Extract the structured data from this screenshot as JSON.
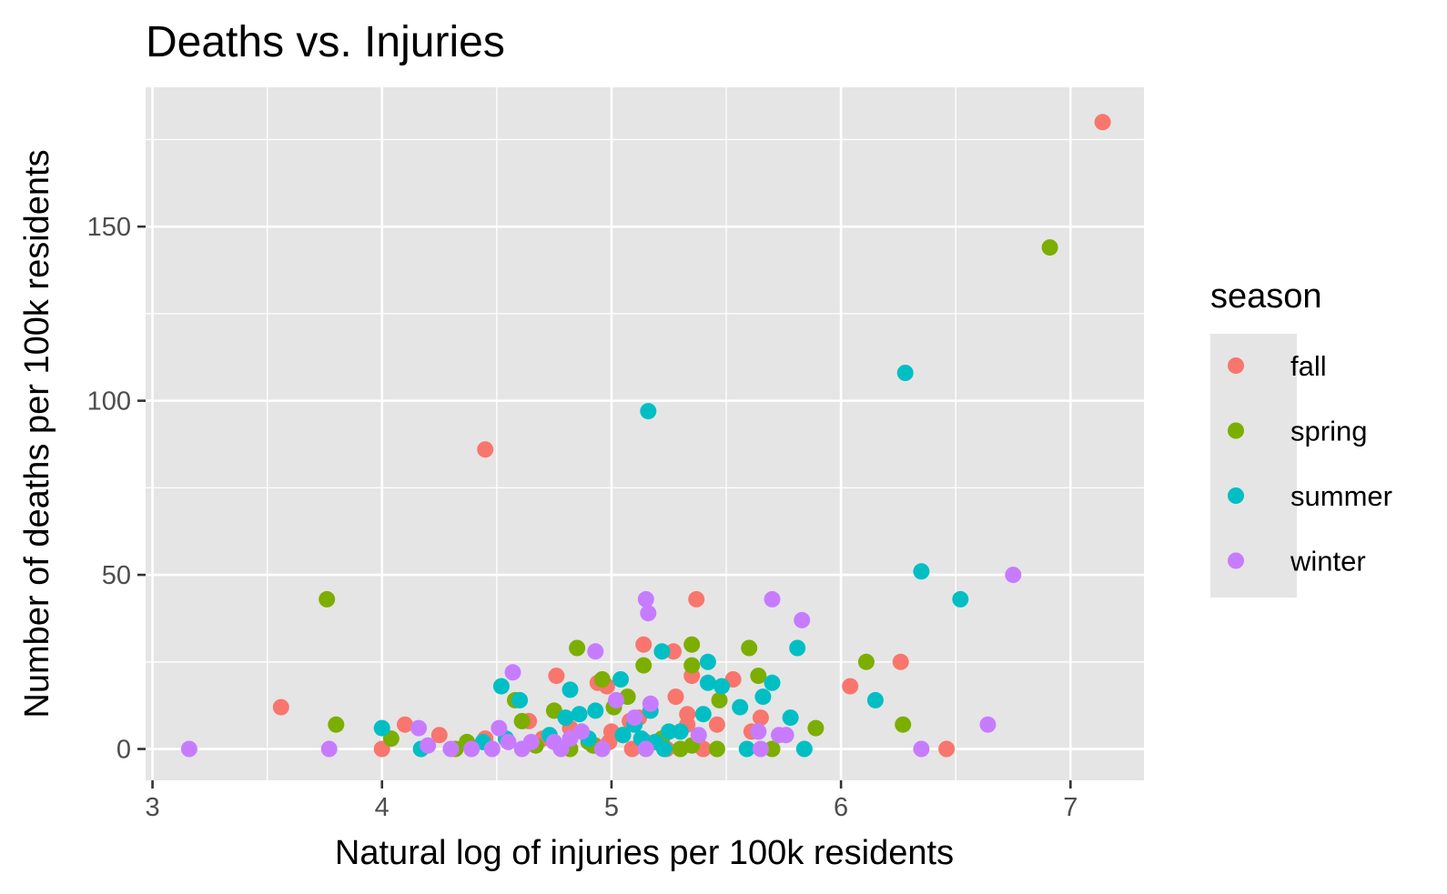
{
  "chart_data": {
    "type": "scatter",
    "title": "Deaths vs. Injuries",
    "xlabel": "Natural log of injuries per 100k residents",
    "ylabel": "Number of deaths per 100k residents",
    "xlim": [
      2.97,
      7.32
    ],
    "ylim": [
      -9,
      190
    ],
    "x_ticks": [
      3,
      4,
      5,
      6,
      7
    ],
    "y_ticks": [
      0,
      50,
      100,
      150
    ],
    "x_minor_ticks": [
      3.5,
      4.5,
      5.5,
      6.5
    ],
    "y_minor_ticks": [
      25,
      75,
      125,
      175
    ],
    "grid": true,
    "legend": {
      "title": "season",
      "position": "right"
    },
    "series": [
      {
        "name": "fall",
        "color": "#F8766D",
        "points": [
          [
            7.14,
            180
          ],
          [
            4.45,
            86
          ],
          [
            5.37,
            43
          ],
          [
            5.14,
            30
          ],
          [
            5.27,
            28
          ],
          [
            4.76,
            21
          ],
          [
            5.35,
            21
          ],
          [
            5.53,
            20
          ],
          [
            4.94,
            19
          ],
          [
            4.98,
            18
          ],
          [
            6.04,
            18
          ],
          [
            6.26,
            25
          ],
          [
            5.28,
            15
          ],
          [
            3.56,
            12
          ],
          [
            5.65,
            9
          ],
          [
            5.33,
            10
          ],
          [
            5.12,
            9
          ],
          [
            5.08,
            8
          ],
          [
            5.33,
            7
          ],
          [
            5.46,
            7
          ],
          [
            4.1,
            7
          ],
          [
            4.64,
            8
          ],
          [
            4.82,
            6
          ],
          [
            5.61,
            5
          ],
          [
            5.0,
            5
          ],
          [
            4.25,
            4
          ],
          [
            4.45,
            3
          ],
          [
            4.7,
            3
          ],
          [
            4.99,
            2
          ],
          [
            5.38,
            1
          ],
          [
            4.0,
            0
          ],
          [
            5.09,
            0
          ],
          [
            5.24,
            0
          ],
          [
            5.4,
            0
          ],
          [
            6.46,
            0
          ],
          [
            4.93,
            1
          ],
          [
            5.15,
            2
          ]
        ]
      },
      {
        "name": "spring",
        "color": "#7CAE00",
        "points": [
          [
            6.91,
            144
          ],
          [
            3.76,
            43
          ],
          [
            4.85,
            29
          ],
          [
            5.35,
            30
          ],
          [
            5.6,
            29
          ],
          [
            5.14,
            24
          ],
          [
            5.35,
            24
          ],
          [
            6.11,
            25
          ],
          [
            4.96,
            20
          ],
          [
            5.64,
            21
          ],
          [
            5.07,
            15
          ],
          [
            5.47,
            14
          ],
          [
            4.58,
            14
          ],
          [
            4.75,
            11
          ],
          [
            5.01,
            12
          ],
          [
            4.61,
            8
          ],
          [
            3.8,
            7
          ],
          [
            6.27,
            7
          ],
          [
            5.89,
            6
          ],
          [
            4.04,
            3
          ],
          [
            4.37,
            2
          ],
          [
            4.67,
            1
          ],
          [
            4.82,
            0
          ],
          [
            4.9,
            2
          ],
          [
            5.05,
            4
          ],
          [
            5.22,
            3
          ],
          [
            5.35,
            1
          ],
          [
            5.46,
            0
          ],
          [
            5.7,
            0
          ],
          [
            4.32,
            0
          ],
          [
            4.92,
            1
          ],
          [
            5.3,
            0
          ]
        ]
      },
      {
        "name": "summer",
        "color": "#00BFC4",
        "points": [
          [
            6.28,
            108
          ],
          [
            5.16,
            97
          ],
          [
            6.35,
            51
          ],
          [
            6.52,
            43
          ],
          [
            5.81,
            29
          ],
          [
            5.22,
            28
          ],
          [
            5.42,
            25
          ],
          [
            5.04,
            20
          ],
          [
            5.42,
            19
          ],
          [
            5.48,
            18
          ],
          [
            5.7,
            19
          ],
          [
            4.52,
            18
          ],
          [
            4.82,
            17
          ],
          [
            5.66,
            15
          ],
          [
            6.15,
            14
          ],
          [
            4.6,
            14
          ],
          [
            5.56,
            12
          ],
          [
            4.93,
            11
          ],
          [
            5.17,
            11
          ],
          [
            4.86,
            10
          ],
          [
            5.4,
            10
          ],
          [
            5.78,
            9
          ],
          [
            4.8,
            9
          ],
          [
            4.0,
            6
          ],
          [
            5.1,
            7
          ],
          [
            5.25,
            5
          ],
          [
            5.05,
            4
          ],
          [
            4.9,
            3
          ],
          [
            5.19,
            2
          ],
          [
            4.44,
            2
          ],
          [
            4.54,
            3
          ],
          [
            4.73,
            4
          ],
          [
            5.23,
            0
          ],
          [
            5.59,
            0
          ],
          [
            5.84,
            0
          ],
          [
            4.17,
            0
          ],
          [
            5.3,
            5
          ],
          [
            5.13,
            3
          ]
        ]
      },
      {
        "name": "winter",
        "color": "#C77CFF",
        "points": [
          [
            6.75,
            50
          ],
          [
            5.7,
            43
          ],
          [
            5.15,
            43
          ],
          [
            5.16,
            39
          ],
          [
            5.83,
            37
          ],
          [
            4.93,
            28
          ],
          [
            4.57,
            22
          ],
          [
            5.02,
            14
          ],
          [
            5.17,
            13
          ],
          [
            5.1,
            9
          ],
          [
            6.64,
            7
          ],
          [
            4.16,
            6
          ],
          [
            4.51,
            6
          ],
          [
            5.73,
            4
          ],
          [
            5.76,
            4
          ],
          [
            5.64,
            5
          ],
          [
            4.82,
            3
          ],
          [
            4.75,
            2
          ],
          [
            4.65,
            2
          ],
          [
            4.2,
            1
          ],
          [
            4.48,
            0
          ],
          [
            4.61,
            0
          ],
          [
            4.78,
            0
          ],
          [
            4.96,
            0
          ],
          [
            5.15,
            0
          ],
          [
            5.65,
            0
          ],
          [
            4.3,
            0
          ],
          [
            4.39,
            0
          ],
          [
            3.16,
            0
          ],
          [
            3.77,
            0
          ],
          [
            6.35,
            0
          ],
          [
            4.55,
            2
          ],
          [
            4.87,
            5
          ],
          [
            5.38,
            4
          ]
        ]
      }
    ]
  }
}
